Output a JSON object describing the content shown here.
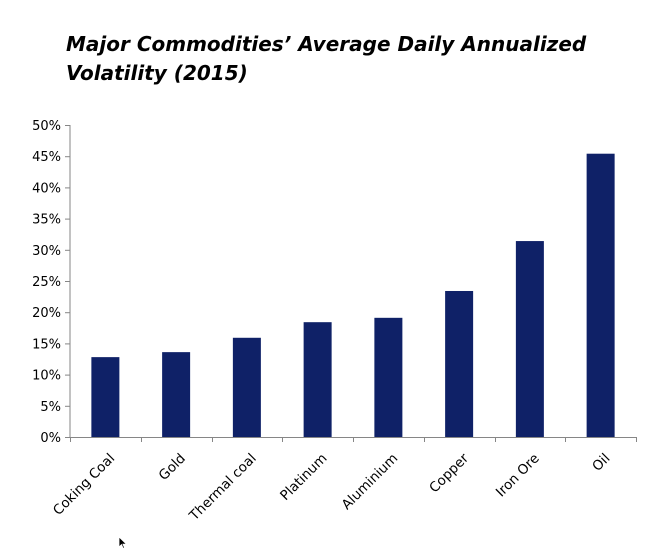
{
  "chart_data": {
    "type": "bar",
    "title": "Major Commodities’ Average Daily Annualized Volatility (2015)",
    "xlabel": "",
    "ylabel": "",
    "categories": [
      "Coking Coal",
      "Gold",
      "Thermal coal",
      "Platinum",
      "Aluminium",
      "Copper",
      "Iron Ore",
      "Oil"
    ],
    "values": [
      12.8,
      13.6,
      15.9,
      18.4,
      19.1,
      23.4,
      31.4,
      45.4
    ],
    "value_format": "percent",
    "ylim": [
      0,
      50
    ],
    "yticks": [
      0,
      5,
      10,
      15,
      20,
      25,
      30,
      35,
      40,
      45,
      50
    ],
    "ytick_labels": [
      "0%",
      "5%",
      "10%",
      "15%",
      "20%",
      "25%",
      "30%",
      "35%",
      "40%",
      "45%",
      "50%"
    ],
    "grid": false,
    "legend": "none",
    "bar_color": "#0f2167"
  },
  "cursor": {
    "icon": "mouse-pointer-icon"
  }
}
